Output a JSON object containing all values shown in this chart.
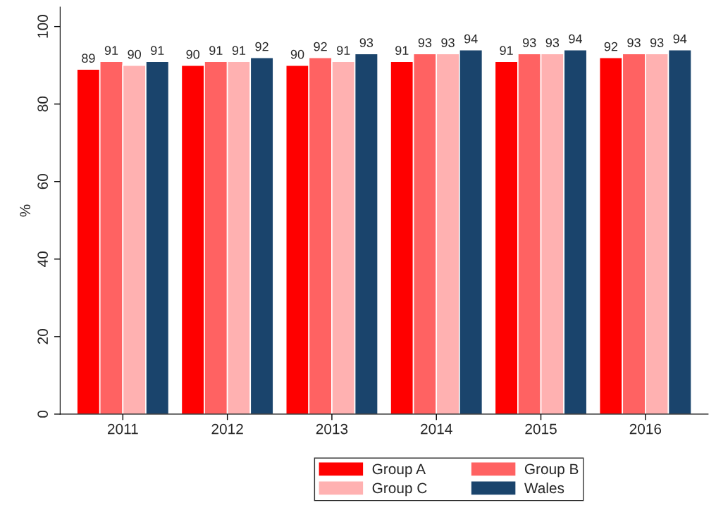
{
  "chart_data": {
    "type": "bar",
    "ylabel": "%",
    "categories": [
      "2011",
      "2012",
      "2013",
      "2014",
      "2015",
      "2016"
    ],
    "series": [
      {
        "name": "Group A",
        "color": "#ff0000",
        "values": [
          89,
          90,
          90,
          91,
          91,
          92
        ]
      },
      {
        "name": "Group B",
        "color": "#ff6262",
        "values": [
          91,
          91,
          92,
          93,
          93,
          93
        ]
      },
      {
        "name": "Group C",
        "color": "#ffb1b1",
        "values": [
          90,
          91,
          91,
          93,
          93,
          93
        ]
      },
      {
        "name": "Wales",
        "color": "#1a446c",
        "values": [
          91,
          92,
          93,
          94,
          94,
          94
        ]
      }
    ],
    "ylim": [
      0,
      105
    ],
    "yticks": [
      0,
      20,
      40,
      60,
      80,
      100
    ],
    "data_labels": true,
    "grid": false,
    "legend": "bottom"
  }
}
